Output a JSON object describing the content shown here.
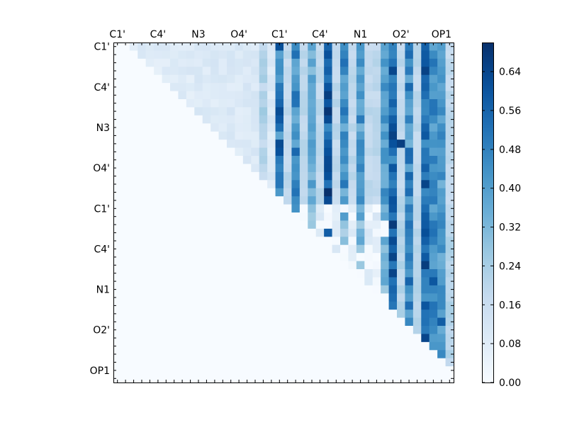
{
  "chart_data": {
    "type": "heatmap",
    "title": "",
    "xlabel": "",
    "ylabel": "",
    "size": 42,
    "ticks": {
      "positions": [
        0,
        5,
        10,
        15,
        20,
        25,
        30,
        35,
        40
      ],
      "labels": [
        "C1'",
        "C4'",
        "N3",
        "O4'",
        "C1'",
        "C4'",
        "N1",
        "O2'",
        "OP1"
      ]
    },
    "x_ticks_position": "top",
    "y_ticks_position": "left",
    "colormap": "Blues",
    "colormap_stops": [
      "#f7fbff",
      "#deebf7",
      "#c6dbef",
      "#9ecae1",
      "#6baed6",
      "#4292c6",
      "#2171b5",
      "#08519c",
      "#08306b"
    ],
    "vmin": 0.0,
    "vmax": 0.7,
    "colorbar": {
      "position": "right",
      "ticks": [
        "0.00",
        "0.08",
        "0.16",
        "0.24",
        "0.32",
        "0.40",
        "0.48",
        "0.56",
        "0.64"
      ]
    },
    "grid": false,
    "matrix": "upper-triangular; strongest values (about 0.66) near rows 12-13 at columns 26 and 34; strong vertical streaks at columns 20, 26, 34, 38"
  }
}
